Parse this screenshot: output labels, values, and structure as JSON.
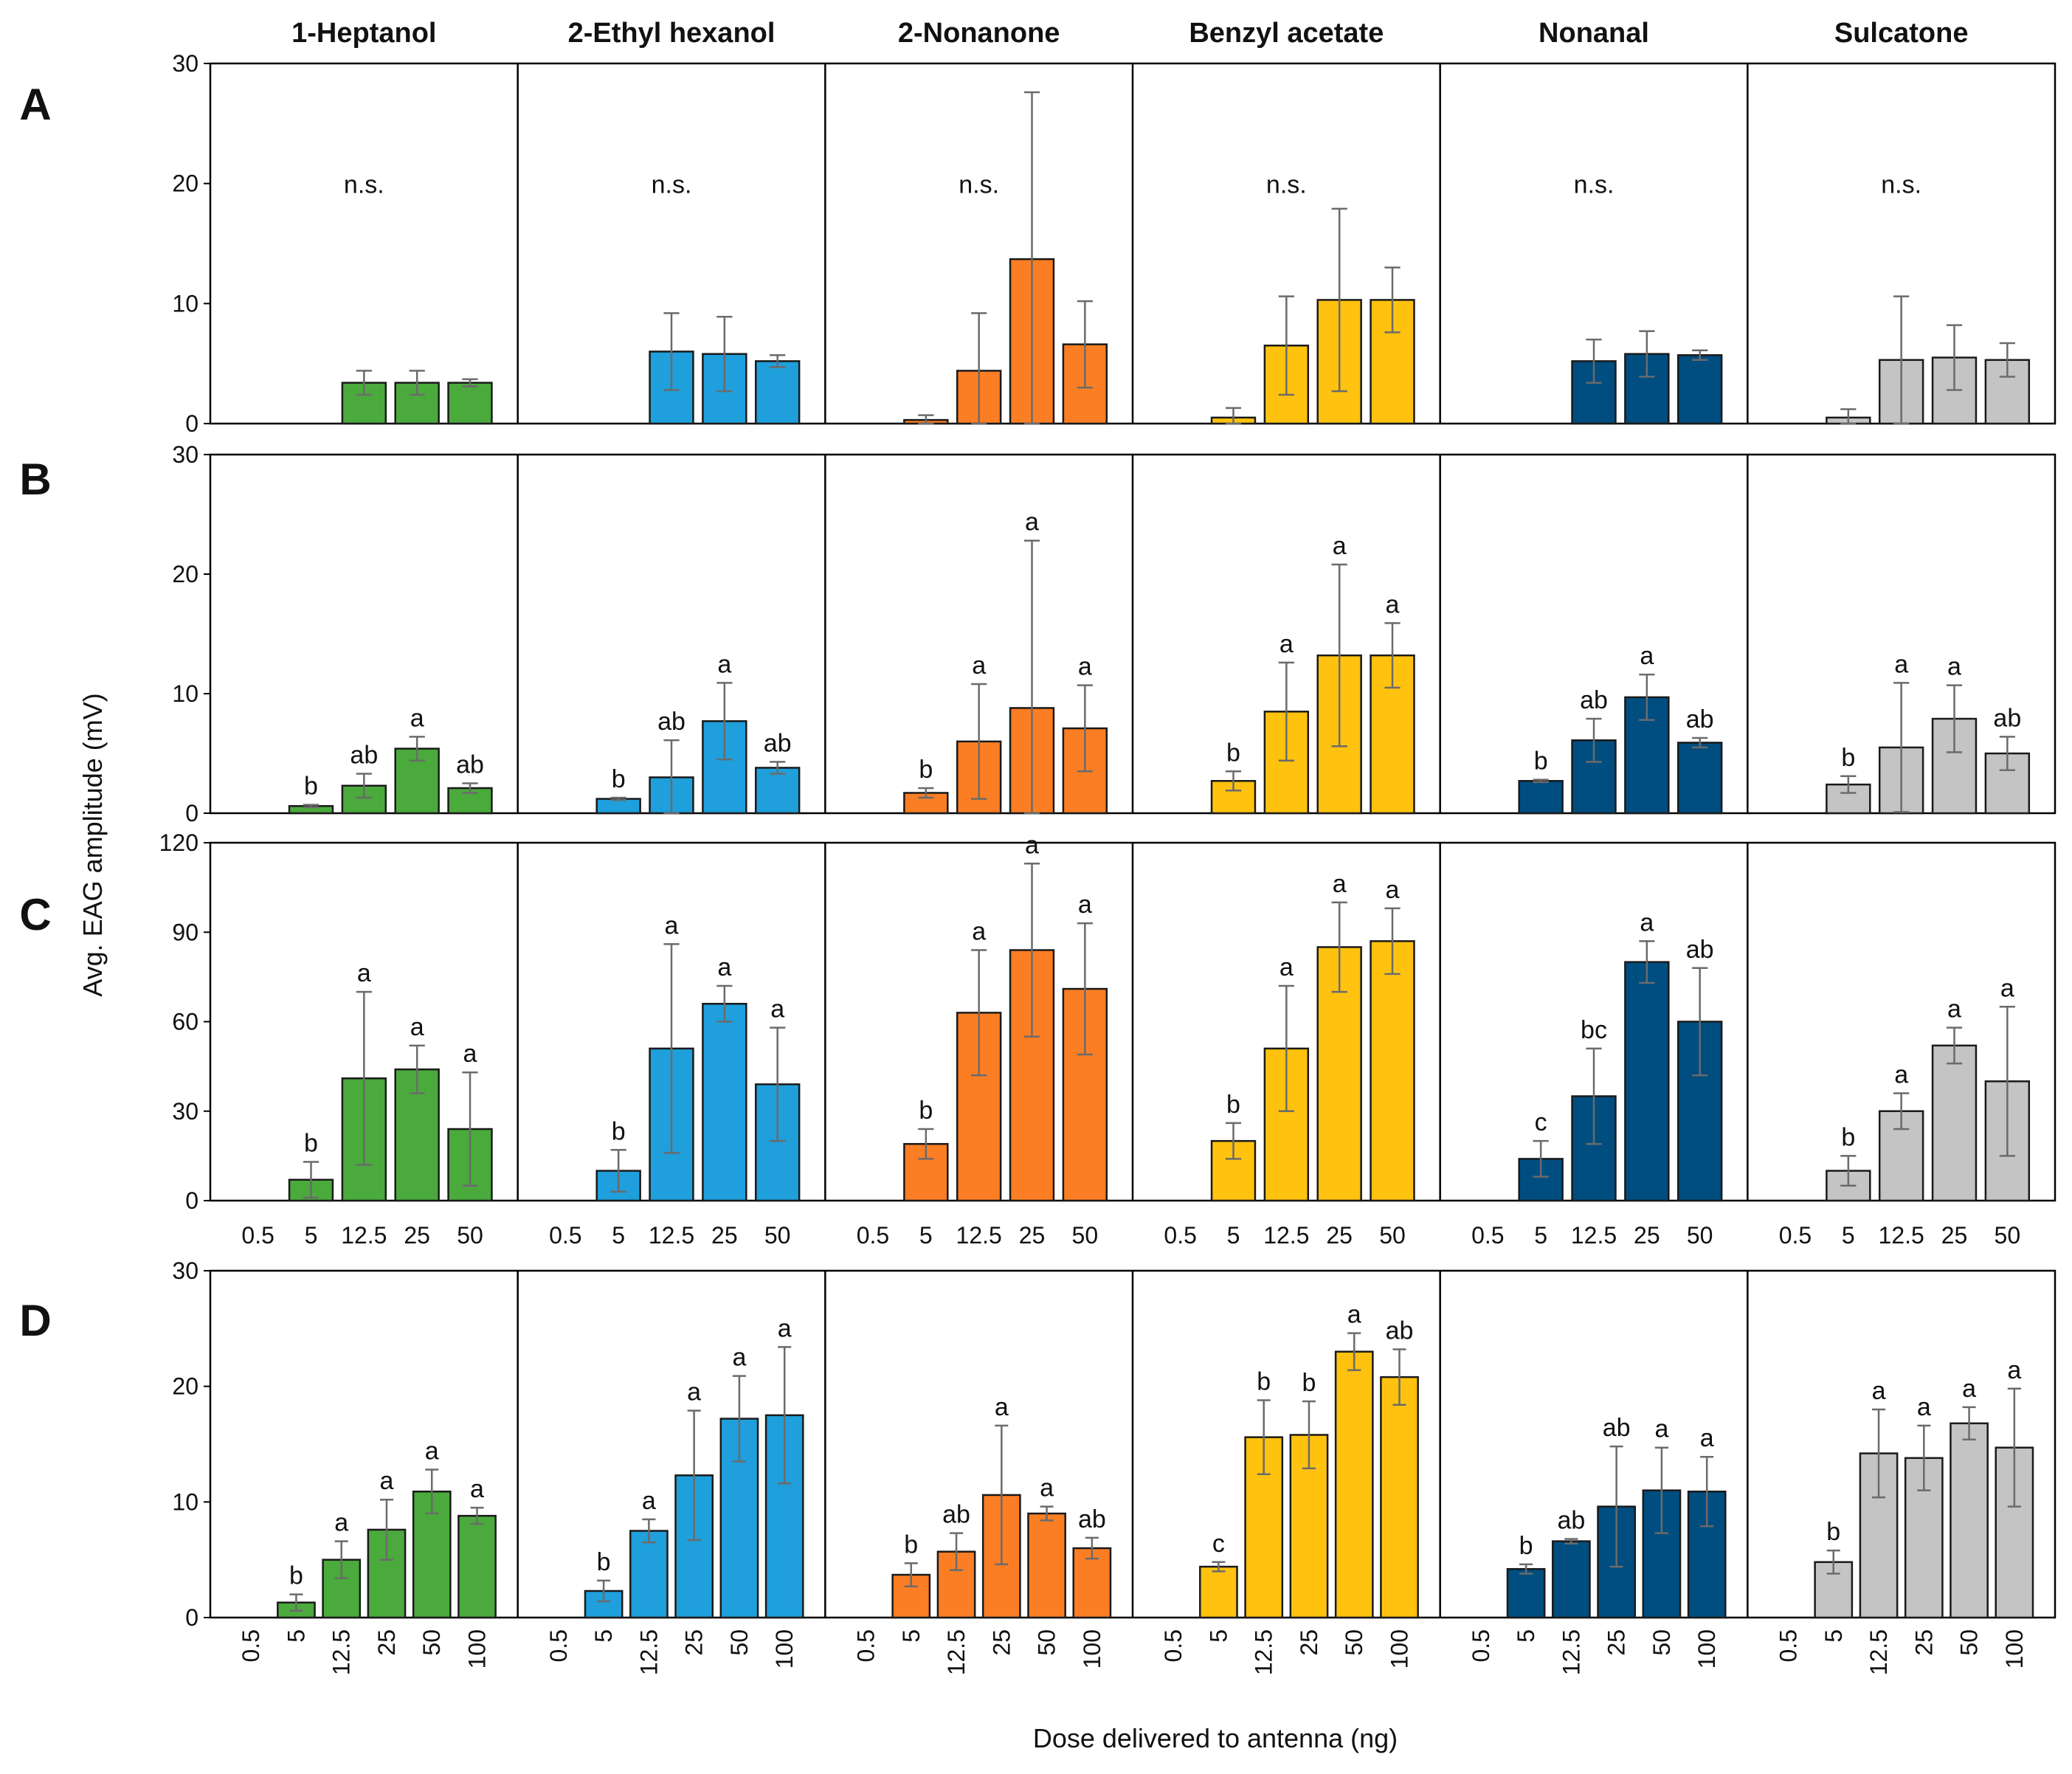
{
  "figure": {
    "y_axis_label": "Avg. EAG  amplitude (mV)",
    "x_axis_label": "Dose delivered to antenna (ng)",
    "compounds": [
      "1-Heptanol",
      "2-Ethyl hexanol",
      "2-Nonanone",
      "Benzyl acetate",
      "Nonanal",
      "Sulcatone"
    ],
    "compound_colors": [
      "#4aaa3c",
      "#1f9fdb",
      "#fb7e24",
      "#ffc20e",
      "#004d80",
      "#c4c4c4"
    ]
  },
  "chart_data": [
    {
      "type": "bar",
      "panel": "A",
      "ylim": [
        0,
        30
      ],
      "yticks": [
        0,
        10,
        20,
        30
      ],
      "categories": [
        "0.5",
        "5",
        "12.5",
        "25",
        "50"
      ],
      "show_category_labels": false,
      "category_label_rotation": 0,
      "series": [
        {
          "name": "1-Heptanol",
          "values": [
            0,
            0,
            3.4,
            3.4,
            3.4
          ],
          "errors": [
            0,
            0,
            1.0,
            1.0,
            0.3
          ],
          "letters": [
            "",
            "",
            "",
            "",
            ""
          ],
          "annotation": "n.s."
        },
        {
          "name": "2-Ethyl hexanol",
          "values": [
            0,
            0,
            6.0,
            5.8,
            5.2
          ],
          "errors": [
            0,
            0,
            3.2,
            3.1,
            0.5
          ],
          "letters": [
            "",
            "",
            "",
            "",
            ""
          ],
          "annotation": "n.s."
        },
        {
          "name": "2-Nonanone",
          "values": [
            0,
            0.3,
            4.4,
            13.7,
            6.6
          ],
          "errors": [
            0,
            0.4,
            4.8,
            13.9,
            3.6
          ],
          "letters": [
            "",
            "",
            "",
            "",
            ""
          ],
          "annotation": "n.s."
        },
        {
          "name": "Benzyl acetate",
          "values": [
            0,
            0.5,
            6.5,
            10.3,
            10.3
          ],
          "errors": [
            0,
            0.8,
            4.1,
            7.6,
            2.7
          ],
          "letters": [
            "",
            "",
            "",
            "",
            ""
          ],
          "annotation": "n.s."
        },
        {
          "name": "Nonanal",
          "values": [
            0,
            0,
            5.2,
            5.8,
            5.7
          ],
          "errors": [
            0,
            0,
            1.8,
            1.9,
            0.4
          ],
          "letters": [
            "",
            "",
            "",
            "",
            ""
          ],
          "annotation": "n.s."
        },
        {
          "name": "Sulcatone",
          "values": [
            0,
            0.5,
            5.3,
            5.5,
            5.3
          ],
          "errors": [
            0,
            0.7,
            5.3,
            2.7,
            1.4
          ],
          "letters": [
            "",
            "",
            "",
            "",
            ""
          ],
          "annotation": "n.s."
        }
      ]
    },
    {
      "type": "bar",
      "panel": "B",
      "ylim": [
        0,
        30
      ],
      "yticks": [
        0,
        10,
        20,
        30
      ],
      "categories": [
        "0.5",
        "5",
        "12.5",
        "25",
        "50"
      ],
      "show_category_labels": false,
      "category_label_rotation": 0,
      "series": [
        {
          "name": "1-Heptanol",
          "values": [
            0,
            0.6,
            2.3,
            5.4,
            2.1
          ],
          "errors": [
            0,
            0.1,
            1.0,
            1.0,
            0.4
          ],
          "letters": [
            "",
            "b",
            "ab",
            "a",
            "ab"
          ],
          "annotation": ""
        },
        {
          "name": "2-Ethyl hexanol",
          "values": [
            0,
            1.2,
            3.0,
            7.7,
            3.8
          ],
          "errors": [
            0,
            0.1,
            3.1,
            3.2,
            0.5
          ],
          "letters": [
            "",
            "b",
            "ab",
            "a",
            "ab"
          ],
          "annotation": ""
        },
        {
          "name": "2-Nonanone",
          "values": [
            0,
            1.7,
            6.0,
            8.8,
            7.1
          ],
          "errors": [
            0,
            0.4,
            4.8,
            14.0,
            3.6
          ],
          "letters": [
            "",
            "b",
            "a",
            "a",
            "a"
          ],
          "annotation": ""
        },
        {
          "name": "Benzyl acetate",
          "values": [
            0,
            2.7,
            8.5,
            13.2,
            13.2
          ],
          "errors": [
            0,
            0.8,
            4.1,
            7.6,
            2.7
          ],
          "letters": [
            "",
            "b",
            "a",
            "a",
            "a"
          ],
          "annotation": ""
        },
        {
          "name": "Nonanal",
          "values": [
            0,
            2.7,
            6.1,
            9.7,
            5.9
          ],
          "errors": [
            0,
            0.1,
            1.8,
            1.9,
            0.4
          ],
          "letters": [
            "",
            "b",
            "ab",
            "a",
            "ab"
          ],
          "annotation": ""
        },
        {
          "name": "Sulcatone",
          "values": [
            0,
            2.4,
            5.5,
            7.9,
            5.0
          ],
          "errors": [
            0,
            0.7,
            5.4,
            2.8,
            1.4
          ],
          "letters": [
            "",
            "b",
            "a",
            "a",
            "ab"
          ],
          "annotation": ""
        }
      ]
    },
    {
      "type": "bar",
      "panel": "C",
      "ylim": [
        0,
        120
      ],
      "yticks": [
        0,
        30,
        60,
        90,
        120
      ],
      "categories": [
        "0.5",
        "5",
        "12.5",
        "25",
        "50"
      ],
      "show_category_labels": true,
      "category_label_rotation": 0,
      "series": [
        {
          "name": "1-Heptanol",
          "values": [
            0,
            7,
            41,
            44,
            24
          ],
          "errors": [
            0,
            6,
            29,
            8,
            19
          ],
          "letters": [
            "",
            "b",
            "a",
            "a",
            "a"
          ],
          "annotation": ""
        },
        {
          "name": "2-Ethyl hexanol",
          "values": [
            0,
            10,
            51,
            66,
            39
          ],
          "errors": [
            0,
            7,
            35,
            6,
            19
          ],
          "letters": [
            "",
            "b",
            "a",
            "a",
            "a"
          ],
          "annotation": ""
        },
        {
          "name": "2-Nonanone",
          "values": [
            0,
            19,
            63,
            84,
            71
          ],
          "errors": [
            0,
            5,
            21,
            29,
            22
          ],
          "letters": [
            "",
            "b",
            "a",
            "a",
            "a"
          ],
          "annotation": ""
        },
        {
          "name": "Benzyl acetate",
          "values": [
            0,
            20,
            51,
            85,
            87
          ],
          "errors": [
            0,
            6,
            21,
            15,
            11
          ],
          "letters": [
            "",
            "b",
            "a",
            "a",
            "a"
          ],
          "annotation": ""
        },
        {
          "name": "Nonanal",
          "values": [
            0,
            14,
            35,
            80,
            60
          ],
          "errors": [
            0,
            6,
            16,
            7,
            18
          ],
          "letters": [
            "",
            "c",
            "bc",
            "a",
            "ab"
          ],
          "annotation": ""
        },
        {
          "name": "Sulcatone",
          "values": [
            0,
            10,
            30,
            52,
            40
          ],
          "errors": [
            0,
            5,
            6,
            6,
            25
          ],
          "letters": [
            "",
            "b",
            "a",
            "a",
            "a"
          ],
          "annotation": ""
        }
      ]
    },
    {
      "type": "bar",
      "panel": "D",
      "ylim": [
        0,
        30
      ],
      "yticks": [
        0,
        10,
        20,
        30
      ],
      "categories": [
        "0.5",
        "5",
        "12.5",
        "25",
        "50",
        "100"
      ],
      "show_category_labels": true,
      "category_label_rotation": -90,
      "series": [
        {
          "name": "1-Heptanol",
          "values": [
            0,
            1.3,
            5.0,
            7.6,
            10.9,
            8.8
          ],
          "errors": [
            0,
            0.7,
            1.6,
            2.6,
            1.9,
            0.7
          ],
          "letters": [
            "",
            "b",
            "a",
            "a",
            "a",
            "a"
          ],
          "annotation": ""
        },
        {
          "name": "2-Ethyl hexanol",
          "values": [
            0,
            2.3,
            7.5,
            12.3,
            17.2,
            17.5
          ],
          "errors": [
            0,
            0.9,
            1.0,
            5.6,
            3.7,
            5.9
          ],
          "letters": [
            "",
            "b",
            "a",
            "a",
            "a",
            "a"
          ],
          "annotation": ""
        },
        {
          "name": "2-Nonanone",
          "values": [
            0,
            3.7,
            5.7,
            10.6,
            9.0,
            6.0
          ],
          "errors": [
            0,
            1.0,
            1.6,
            6.0,
            0.6,
            0.9
          ],
          "letters": [
            "",
            "b",
            "ab",
            "a",
            "a",
            "ab"
          ],
          "annotation": ""
        },
        {
          "name": "Benzyl acetate",
          "values": [
            0,
            4.4,
            15.6,
            15.8,
            23.0,
            20.8
          ],
          "errors": [
            0,
            0.4,
            3.2,
            2.9,
            1.6,
            2.4
          ],
          "letters": [
            "",
            "c",
            "b",
            "b",
            "a",
            "ab"
          ],
          "annotation": ""
        },
        {
          "name": "Nonanal",
          "values": [
            0,
            4.2,
            6.6,
            9.6,
            11.0,
            10.9
          ],
          "errors": [
            0,
            0.4,
            0.2,
            5.2,
            3.7,
            3.0
          ],
          "letters": [
            "",
            "b",
            "ab",
            "ab",
            "a",
            "a"
          ],
          "annotation": ""
        },
        {
          "name": "Sulcatone",
          "values": [
            0,
            4.8,
            14.2,
            13.8,
            16.8,
            14.7
          ],
          "errors": [
            0,
            1.0,
            3.8,
            2.8,
            1.4,
            5.1
          ],
          "letters": [
            "",
            "b",
            "a",
            "a",
            "a",
            "a"
          ],
          "annotation": ""
        }
      ]
    }
  ]
}
